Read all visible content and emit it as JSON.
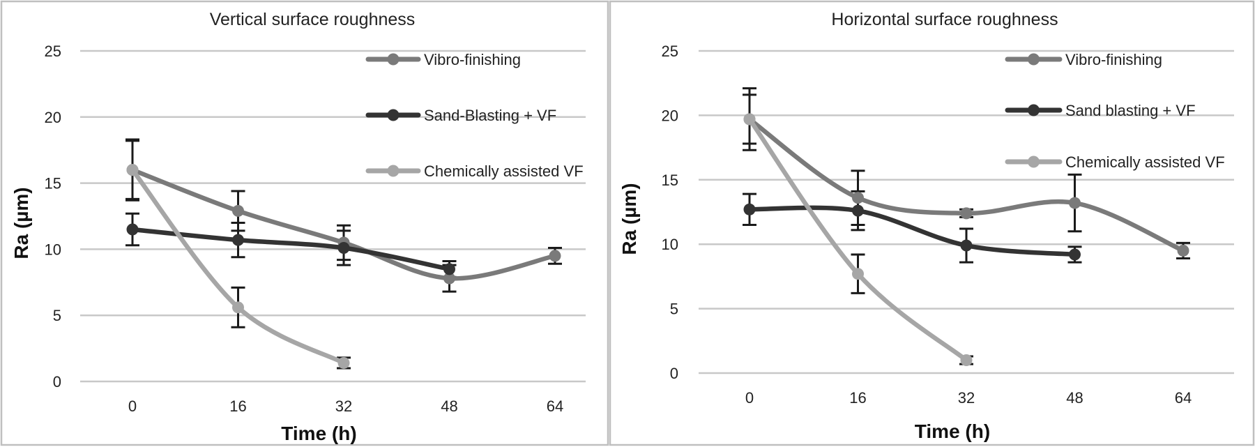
{
  "chart_data": [
    {
      "type": "line",
      "title": "Vertical surface roughness",
      "xlabel": "Time  (h)",
      "ylabel": "Ra (µm)",
      "x": [
        0,
        16,
        32,
        48,
        64
      ],
      "xticks": [
        "0",
        "16",
        "32",
        "48",
        "64"
      ],
      "yticks": [
        "0",
        "5",
        "10",
        "15",
        "20",
        "25"
      ],
      "ylim": [
        0,
        25
      ],
      "grid": true,
      "legend_position": "top-right",
      "series": [
        {
          "name": "Vibro-finishing",
          "color": "#7a7a7a",
          "x": [
            0,
            16,
            32,
            48,
            64
          ],
          "y": [
            16,
            12.9,
            10.5,
            7.8,
            9.5
          ],
          "err": [
            2.2,
            1.5,
            1.3,
            1.0,
            0.6
          ]
        },
        {
          "name": "Sand-Blasting + VF",
          "color": "#333333",
          "x": [
            0,
            16,
            32,
            48
          ],
          "y": [
            11.5,
            10.7,
            10.1,
            8.5
          ],
          "err": [
            1.2,
            1.3,
            1.3,
            0.6
          ]
        },
        {
          "name": "Chemically assisted VF",
          "color": "#a6a6a6",
          "x": [
            0,
            16,
            32
          ],
          "y": [
            16,
            5.6,
            1.4
          ],
          "err": [
            2.3,
            1.5,
            0.4
          ]
        }
      ]
    },
    {
      "type": "line",
      "title": "Horizontal surface roughness",
      "xlabel": "Time  (h)",
      "ylabel": "Ra (µm)",
      "x": [
        0,
        16,
        32,
        48,
        64
      ],
      "xticks": [
        "0",
        "16",
        "32",
        "48",
        "64"
      ],
      "yticks": [
        "0",
        "5",
        "10",
        "15",
        "20",
        "25"
      ],
      "ylim": [
        0,
        25
      ],
      "grid": true,
      "legend_position": "top-right",
      "series": [
        {
          "name": "Vibro-finishing",
          "color": "#7a7a7a",
          "x": [
            0,
            16,
            32,
            48,
            64
          ],
          "y": [
            19.7,
            13.6,
            12.4,
            13.2,
            9.5
          ],
          "err": [
            1.9,
            2.1,
            0.3,
            2.2,
            0.6
          ]
        },
        {
          "name": "Sand blasting + VF",
          "color": "#333333",
          "x": [
            0,
            16,
            32,
            48
          ],
          "y": [
            12.7,
            12.6,
            9.9,
            9.2
          ],
          "err": [
            1.2,
            1.5,
            1.3,
            0.6
          ]
        },
        {
          "name": "Chemically assisted VF",
          "color": "#a6a6a6",
          "x": [
            0,
            16,
            32
          ],
          "y": [
            19.7,
            7.7,
            1.0
          ],
          "err": [
            2.4,
            1.5,
            0.3
          ]
        }
      ]
    }
  ]
}
